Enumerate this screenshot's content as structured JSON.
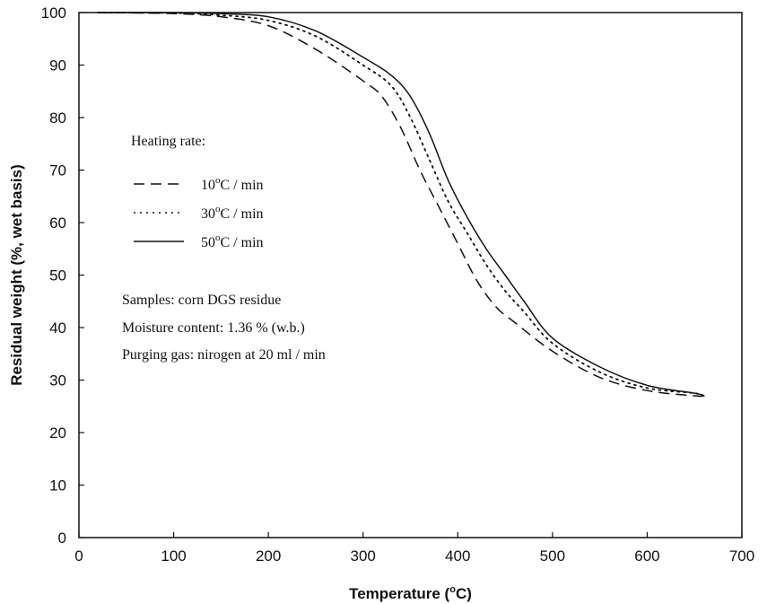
{
  "chart_data": {
    "type": "line",
    "xlabel_main": "Temperature (",
    "xlabel_sup": "o",
    "xlabel_tail": "C)",
    "ylabel": "Residual weight (%, wet basis)",
    "xlim": [
      0,
      700
    ],
    "ylim": [
      0,
      100
    ],
    "xticks": [
      0,
      100,
      200,
      300,
      400,
      500,
      600,
      700
    ],
    "yticks": [
      0,
      10,
      20,
      30,
      40,
      50,
      60,
      70,
      80,
      90,
      100
    ],
    "grid": false,
    "legend": {
      "title": "Heating rate:",
      "placement": "upper-left inside"
    },
    "series": [
      {
        "name_num": "10",
        "name_sup": "o",
        "name_tail": "C / min",
        "style": "dashed",
        "x": [
          20,
          100,
          150,
          200,
          250,
          300,
          320,
          340,
          360,
          380,
          400,
          420,
          440,
          460,
          500,
          550,
          600,
          650,
          660
        ],
        "y": [
          100,
          99.8,
          99.2,
          97.5,
          93,
          87,
          84,
          78,
          70,
          63,
          56,
          49,
          44,
          41,
          35.5,
          30.5,
          28,
          27,
          27
        ]
      },
      {
        "name_num": "30",
        "name_sup": "o",
        "name_tail": "C / min",
        "style": "dotted",
        "x": [
          20,
          100,
          150,
          200,
          250,
          300,
          330,
          350,
          370,
          390,
          410,
          430,
          450,
          470,
          500,
          550,
          600,
          650,
          660
        ],
        "y": [
          100,
          99.9,
          99.5,
          98.5,
          95.5,
          90,
          86,
          80,
          72,
          64,
          58,
          52,
          47,
          43,
          37,
          31.5,
          28.5,
          27.5,
          27
        ]
      },
      {
        "name_num": "50",
        "name_sup": "o",
        "name_tail": "C / min",
        "style": "solid",
        "x": [
          20,
          100,
          150,
          200,
          250,
          300,
          330,
          350,
          370,
          390,
          410,
          430,
          450,
          470,
          500,
          550,
          600,
          650,
          660
        ],
        "y": [
          100,
          100,
          99.8,
          99.2,
          96.5,
          91.5,
          88,
          84,
          77,
          68,
          61,
          55,
          50,
          45,
          38,
          32.5,
          29,
          27.5,
          27
        ]
      }
    ],
    "annotations": [
      "Samples: corn DGS residue",
      "Moisture content: 1.36 % (w.b.)",
      "Purging gas: nirogen at 20 ml / min"
    ]
  }
}
